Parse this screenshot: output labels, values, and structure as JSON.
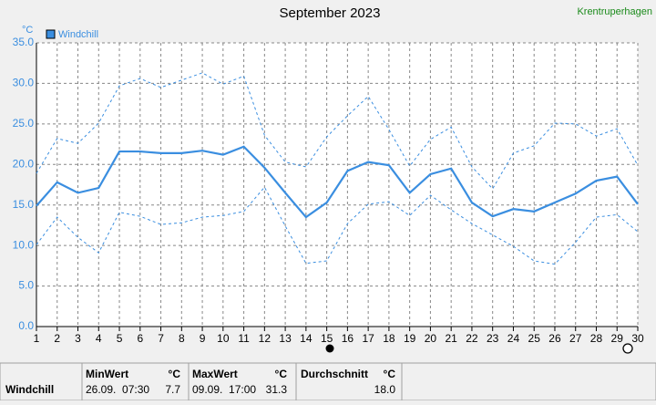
{
  "header": {
    "station": "Krentruperhagen"
  },
  "chart_data": {
    "type": "line",
    "title": "September 2023",
    "y_unit": "°C",
    "x": [
      1,
      2,
      3,
      4,
      5,
      6,
      7,
      8,
      9,
      10,
      11,
      12,
      13,
      14,
      15,
      16,
      17,
      18,
      19,
      20,
      21,
      22,
      23,
      24,
      25,
      26,
      27,
      28,
      29,
      30
    ],
    "xlim": [
      1,
      30
    ],
    "xticks": [
      1,
      2,
      3,
      4,
      5,
      6,
      7,
      8,
      9,
      10,
      11,
      12,
      13,
      14,
      15,
      16,
      17,
      18,
      19,
      20,
      21,
      22,
      23,
      24,
      25,
      26,
      27,
      28,
      29,
      30
    ],
    "ylim": [
      0,
      35
    ],
    "yticks": [
      {
        "value": 0,
        "label": "0.0"
      },
      {
        "value": 5,
        "label": "5.0"
      },
      {
        "value": 10,
        "label": "10.0"
      },
      {
        "value": 15,
        "label": "15.0"
      },
      {
        "value": 20,
        "label": "20.0"
      },
      {
        "value": 25,
        "label": "25.0"
      },
      {
        "value": 30,
        "label": "30.0"
      },
      {
        "value": 35,
        "label": "35.0"
      }
    ],
    "grid": true,
    "series": [
      {
        "name": "Windchill",
        "color": "#3a8ee0",
        "dashed": false,
        "values": [
          14.9,
          17.8,
          16.5,
          17.1,
          21.6,
          21.6,
          21.4,
          21.4,
          21.7,
          21.2,
          22.2,
          19.6,
          16.5,
          13.5,
          15.3,
          19.2,
          20.3,
          19.9,
          16.5,
          18.8,
          19.5,
          15.3,
          13.6,
          14.5,
          14.2,
          15.3,
          16.4,
          18.0,
          18.5,
          15.1
        ]
      },
      {
        "color": "#3a8ee0",
        "dashed": true,
        "values": [
          18.9,
          23.2,
          22.6,
          25.1,
          29.7,
          30.6,
          29.5,
          30.4,
          31.3,
          29.9,
          30.9,
          23.6,
          20.3,
          19.7,
          23.4,
          26.0,
          28.4,
          24.3,
          19.8,
          23.1,
          24.6,
          19.7,
          17.0,
          21.4,
          22.3,
          25.1,
          25.0,
          23.5,
          24.4,
          19.9
        ]
      },
      {
        "color": "#3a8ee0",
        "dashed": true,
        "values": [
          10.1,
          13.5,
          11.0,
          9.1,
          14.1,
          13.6,
          12.6,
          12.8,
          13.5,
          13.7,
          14.2,
          17.2,
          12.4,
          7.8,
          8.1,
          12.7,
          15.1,
          15.4,
          13.7,
          16.2,
          14.4,
          12.7,
          11.3,
          9.9,
          8.1,
          7.7,
          10.4,
          13.5,
          13.8,
          11.7
        ]
      }
    ]
  },
  "summary": {
    "label": "Windchill",
    "columns": [
      {
        "header": "MinWert",
        "unit": "°C",
        "time": "26.09.  07:30",
        "value": "7.7"
      },
      {
        "header": "MaxWert",
        "unit": "°C",
        "time": "09.09.  17:00",
        "value": "31.3"
      },
      {
        "header": "Durchschnitt",
        "unit": "°C",
        "value": "18.0"
      }
    ]
  }
}
